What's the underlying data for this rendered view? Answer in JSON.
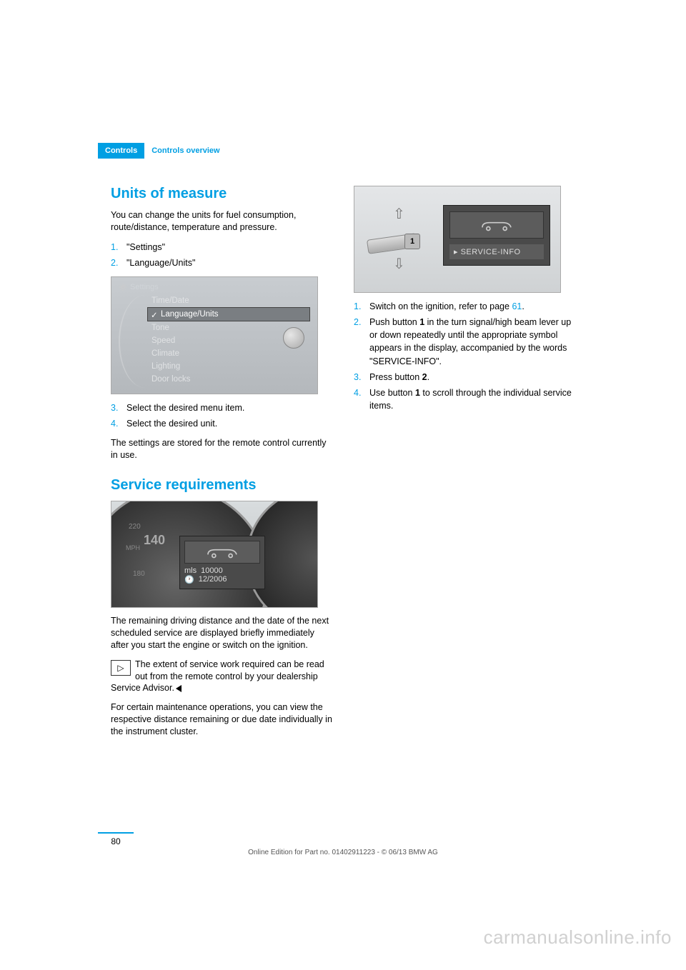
{
  "breadcrumb": {
    "active": "Controls",
    "inactive": "Controls overview"
  },
  "colors": {
    "accent": "#009fe3",
    "body_text": "#000000",
    "screenshot_bg_top": "#d8dcde",
    "screenshot_bg_bottom": "#c0c4c6",
    "display_box_bg": "#4a4a4a",
    "display_label": "#dddddd",
    "watermark": "#d0d0d0"
  },
  "typography": {
    "heading_fontsize": 20,
    "body_fontsize": 12.5,
    "footer_fontsize": 10
  },
  "left_column": {
    "units": {
      "heading": "Units of measure",
      "intro": "You can change the units for fuel consumption, route/distance, temperature and pressure.",
      "steps_a": [
        {
          "n": "1.",
          "text": "\"Settings\""
        },
        {
          "n": "2.",
          "text": "\"Language/Units\""
        }
      ],
      "menu_shot": {
        "header": "Settings",
        "items": [
          "Time/Date",
          "Language/Units",
          "Tone",
          "Speed",
          "Climate",
          "Lighting",
          "Door locks"
        ],
        "selected_index": 1
      },
      "steps_b": [
        {
          "n": "3.",
          "text": "Select the desired menu item."
        },
        {
          "n": "4.",
          "text": "Select the desired unit."
        }
      ],
      "outro": "The settings are stored for the remote control currently in use."
    },
    "service": {
      "heading": "Service requirements",
      "cluster_shot": {
        "speed": "140",
        "speed_unit": "MPH",
        "tick_top": "220",
        "tick_bottom": "180",
        "box_line1_label": "mls",
        "box_line1_value": "10000",
        "box_line2_icon": "clock",
        "box_line2_value": "12/2006"
      },
      "para1": "The remaining driving distance and the date of the next scheduled service are displayed briefly immediately after you start the engine or switch on the ignition.",
      "note": "The extent of service work required can be read out from the remote control by your dealership Service Advisor.",
      "para2": "For certain maintenance operations, you can view the respective distance remaining or due date individually in the instrument cluster."
    }
  },
  "right_column": {
    "lever_shot": {
      "button_label": "1",
      "display_label": "▸ SERVICE-INFO"
    },
    "steps": [
      {
        "n": "1.",
        "text_pre": "Switch on the ignition, refer to page ",
        "link": "61",
        "text_post": "."
      },
      {
        "n": "2.",
        "text": "Push button 1 in the turn signal/high beam lever up or down repeatedly until the appropriate symbol appears in the display, accompanied by the words \"SERVICE-INFO\"."
      },
      {
        "n": "3.",
        "text": "Press button 2."
      },
      {
        "n": "4.",
        "text": "Use button 1 to scroll through the individual service items."
      }
    ]
  },
  "page_number": "80",
  "footer": "Online Edition for Part no. 01402911223 - © 06/13 BMW AG",
  "watermark": "carmanualsonline.info"
}
